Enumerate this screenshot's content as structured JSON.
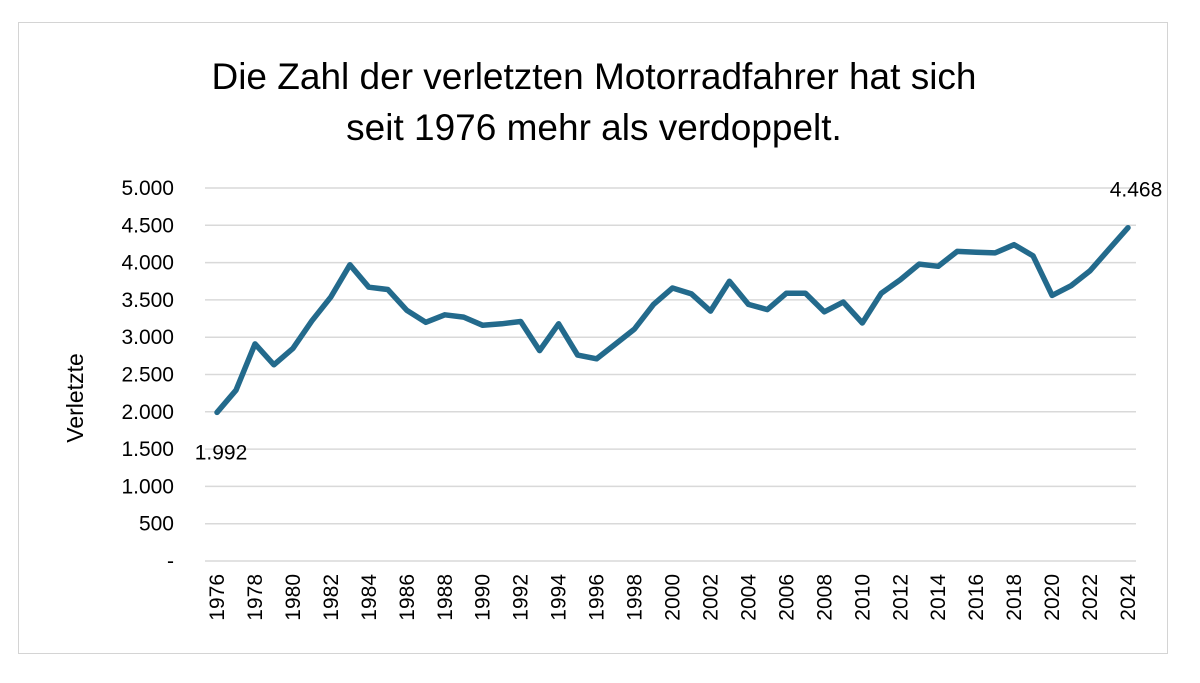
{
  "chart_data": {
    "type": "line",
    "title": "Die Zahl der verletzten Motorradfahrer hat sich seit 1976 mehr als verdoppelt.",
    "title_lines": [
      "Die Zahl der verletzten Motorradfahrer hat sich",
      "seit 1976 mehr als verdoppelt."
    ],
    "xlabel": "",
    "ylabel": "Verletzte",
    "ylim": [
      0,
      5000
    ],
    "y_ticks": [
      0,
      500,
      1000,
      1500,
      2000,
      2500,
      3000,
      3500,
      4000,
      4500,
      5000
    ],
    "y_tick_labels": [
      "-",
      "500",
      "1.000",
      "1.500",
      "2.000",
      "2.500",
      "3.000",
      "3.500",
      "4.000",
      "4.500",
      "5.000"
    ],
    "x_tick_labels": [
      "1976",
      "1978",
      "1980",
      "1982",
      "1984",
      "1986",
      "1988",
      "1990",
      "1992",
      "1994",
      "1996",
      "1998",
      "2000",
      "2002",
      "2004",
      "2006",
      "2008",
      "2010",
      "2012",
      "2014",
      "2016",
      "2018",
      "2020",
      "2022",
      "2024"
    ],
    "grid": true,
    "legend": "none",
    "line_color": "#236a8c",
    "series": [
      {
        "name": "Verletzte",
        "x": [
          1976,
          1977,
          1978,
          1979,
          1980,
          1981,
          1982,
          1983,
          1984,
          1985,
          1986,
          1987,
          1988,
          1989,
          1990,
          1991,
          1992,
          1993,
          1994,
          1995,
          1996,
          1997,
          1998,
          1999,
          2000,
          2001,
          2002,
          2003,
          2004,
          2005,
          2006,
          2007,
          2008,
          2009,
          2010,
          2011,
          2012,
          2013,
          2014,
          2015,
          2016,
          2017,
          2018,
          2019,
          2020,
          2021,
          2022,
          2023,
          2024
        ],
        "values": [
          1992,
          2290,
          2910,
          2630,
          2850,
          3220,
          3540,
          3970,
          3670,
          3640,
          3360,
          3200,
          3300,
          3270,
          3160,
          3180,
          3210,
          2820,
          3180,
          2760,
          2710,
          2910,
          3110,
          3440,
          3660,
          3580,
          3350,
          3750,
          3440,
          3370,
          3590,
          3590,
          3340,
          3470,
          3190,
          3590,
          3770,
          3980,
          3950,
          4150,
          4140,
          4130,
          4240,
          4090,
          3560,
          3690,
          3890,
          4180,
          4468
        ]
      }
    ],
    "annotations": [
      {
        "year": 1976,
        "value": 1992,
        "text": "1.992"
      },
      {
        "year": 2024,
        "value": 4468,
        "text": "4.468"
      }
    ]
  }
}
